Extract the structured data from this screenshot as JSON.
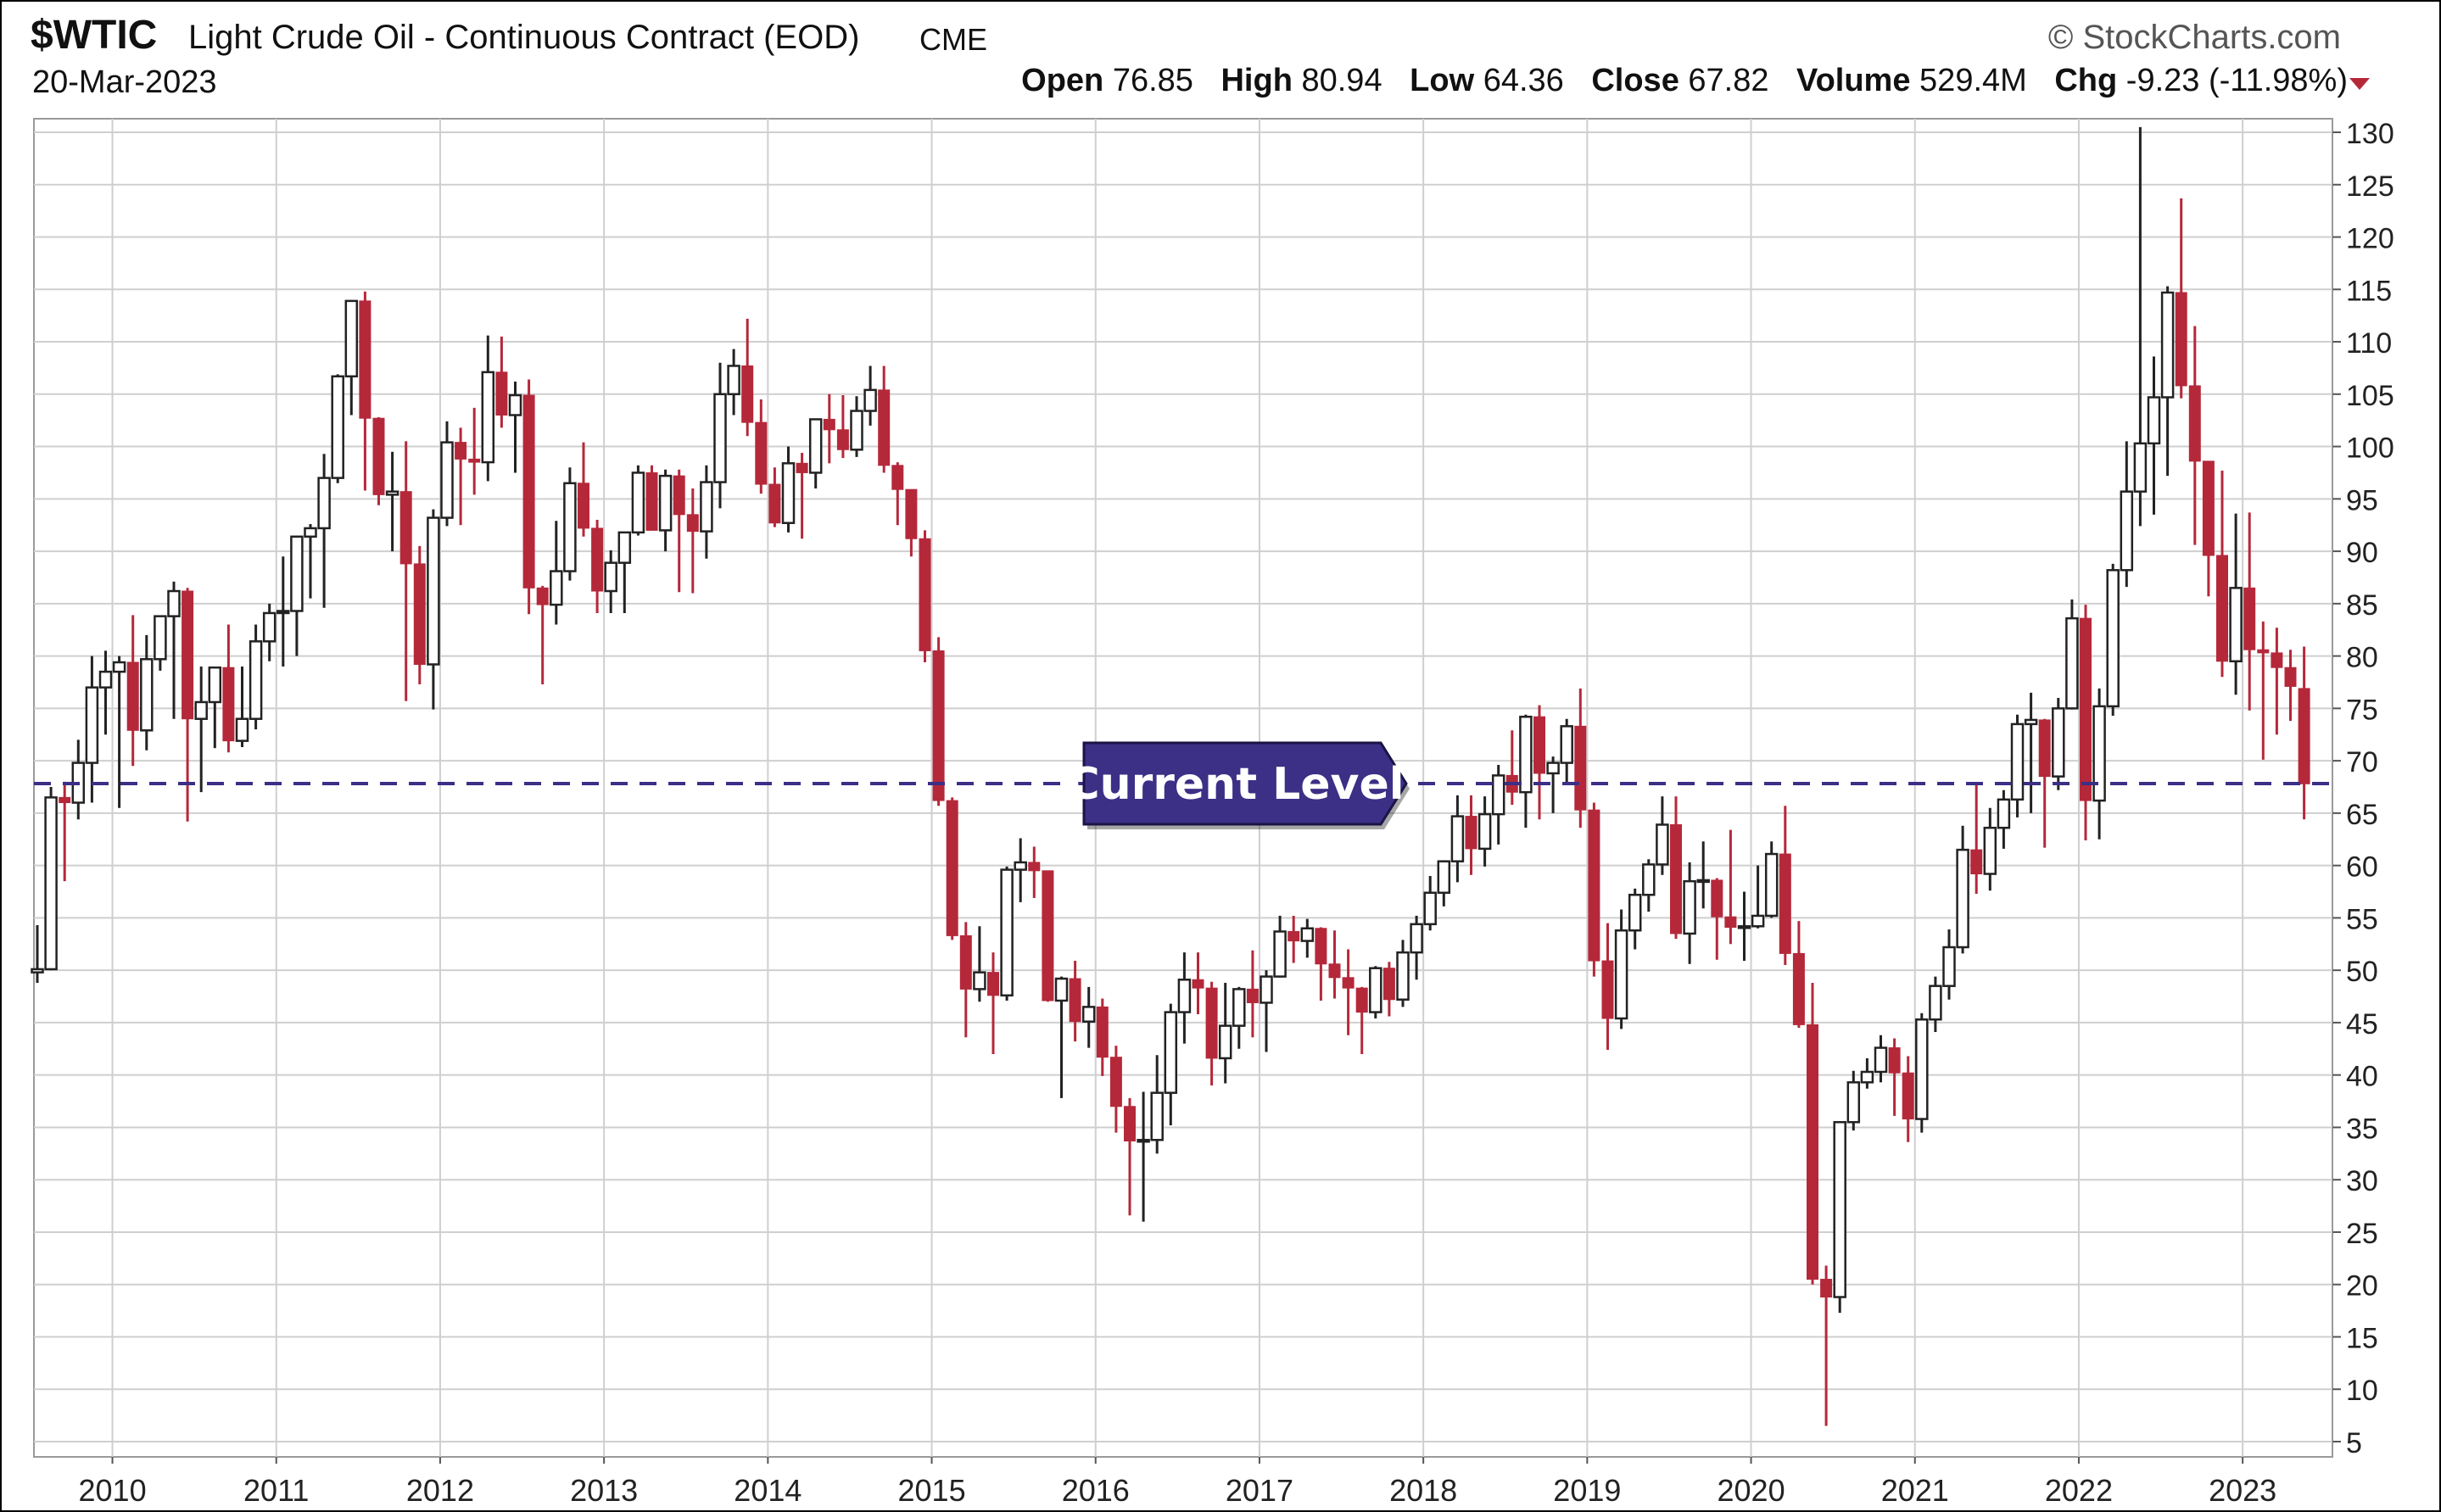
{
  "header": {
    "symbol": "$WTIC",
    "name": "Light Crude Oil - Continuous Contract (EOD)",
    "exchange": "CME",
    "date": "20-Mar-2023",
    "source_logo": "StockCharts.com",
    "open_label": "Open",
    "open": "76.85",
    "high_label": "High",
    "high": "80.94",
    "low_label": "Low",
    "low": "64.36",
    "close_label": "Close",
    "close": "67.82",
    "volume_label": "Volume",
    "volume": "529.4M",
    "chg_label": "Chg",
    "chg": "-9.23 (-11.98%)"
  },
  "colors": {
    "up": "#ffffff",
    "down": "#b5283a",
    "wick": "#222222",
    "annotation": "#3b2f86",
    "grid": "#cfcfcf"
  },
  "chart_data": {
    "type": "candlestick",
    "interval": "monthly",
    "ylim": [
      5,
      130
    ],
    "yticks": [
      5,
      10,
      15,
      20,
      25,
      30,
      35,
      40,
      45,
      50,
      55,
      60,
      65,
      70,
      75,
      80,
      85,
      90,
      95,
      100,
      105,
      110,
      115,
      120,
      125,
      130
    ],
    "xticks": [
      "2010",
      "2011",
      "2012",
      "2013",
      "2014",
      "2015",
      "2016",
      "2017",
      "2018",
      "2019",
      "2020",
      "2021",
      "2022",
      "2023"
    ],
    "start": "2009-07",
    "annotation": {
      "label": "Current Level",
      "value": 67.82
    },
    "ohlc": [
      [
        49.8,
        54.3,
        48.8,
        50.1
      ],
      [
        50.1,
        67.5,
        50,
        66.5
      ],
      [
        66.5,
        68,
        58.5,
        66
      ],
      [
        66,
        72,
        64.4,
        69.8
      ],
      [
        69.8,
        80,
        66,
        77
      ],
      [
        77,
        80.5,
        72.5,
        78.5
      ],
      [
        78.5,
        80,
        65.5,
        79.4
      ],
      [
        79.4,
        83.9,
        69.5,
        72.9
      ],
      [
        72.9,
        82,
        71,
        79.7
      ],
      [
        79.7,
        83,
        78.6,
        83.8
      ],
      [
        83.8,
        87.1,
        74,
        86.2
      ],
      [
        86.2,
        86.5,
        64.2,
        74
      ],
      [
        74,
        79,
        67,
        75.6
      ],
      [
        75.6,
        79,
        71.2,
        78.9
      ],
      [
        78.9,
        83,
        70.8,
        71.9
      ],
      [
        71.9,
        79,
        71.3,
        74
      ],
      [
        74,
        83,
        73,
        81.4
      ],
      [
        81.4,
        85,
        79.5,
        84.1
      ],
      [
        84.1,
        89.5,
        79,
        84.3
      ],
      [
        84.3,
        91.5,
        80,
        91.4
      ],
      [
        91.4,
        92.6,
        85.5,
        92.2
      ],
      [
        92.2,
        99.3,
        84.6,
        97
      ],
      [
        97,
        106.9,
        96.5,
        106.7
      ],
      [
        106.7,
        113.9,
        103,
        113.9
      ],
      [
        113.9,
        114.8,
        95.8,
        102.7
      ],
      [
        102.7,
        102.8,
        94.4,
        95.4
      ],
      [
        95.4,
        99.5,
        90,
        95.7
      ],
      [
        95.7,
        100.5,
        75.7,
        88.8
      ],
      [
        88.8,
        90.5,
        77.3,
        79.2
      ],
      [
        79.2,
        94,
        74.9,
        93.2
      ],
      [
        93.2,
        102.4,
        92.4,
        100.4
      ],
      [
        100.4,
        101.8,
        92.5,
        98.8
      ],
      [
        98.8,
        103.7,
        95.4,
        98.5
      ],
      [
        98.5,
        110.6,
        96.7,
        107.1
      ],
      [
        107.1,
        110.5,
        101.8,
        103
      ],
      [
        103,
        106.2,
        97.5,
        104.9
      ],
      [
        104.9,
        106.4,
        84,
        86.5
      ],
      [
        86.5,
        86.7,
        77.3,
        84.9
      ],
      [
        84.9,
        92.9,
        83,
        88.1
      ],
      [
        88.1,
        98,
        87.2,
        96.5
      ],
      [
        96.5,
        100.4,
        91.4,
        92.2
      ],
      [
        92.2,
        93,
        84.1,
        86.2
      ],
      [
        86.2,
        90.1,
        84.1,
        88.9
      ],
      [
        88.9,
        91.5,
        84.1,
        91.8
      ],
      [
        91.8,
        98.2,
        91.5,
        97.5
      ],
      [
        97.5,
        98.2,
        92,
        92
      ],
      [
        92,
        97.8,
        90,
        97.2
      ],
      [
        97.2,
        97.8,
        86.1,
        93.5
      ],
      [
        93.5,
        96,
        86,
        91.9
      ],
      [
        91.9,
        98.2,
        89.3,
        96.6
      ],
      [
        96.6,
        108,
        94.1,
        105
      ],
      [
        105,
        109.3,
        103,
        107.7
      ],
      [
        107.7,
        112.2,
        101,
        102.3
      ],
      [
        102.3,
        104.5,
        95.5,
        96.4
      ],
      [
        96.4,
        98,
        92.3,
        92.7
      ],
      [
        92.7,
        100,
        91.8,
        98.4
      ],
      [
        98.4,
        99.4,
        91.2,
        97.5
      ],
      [
        97.5,
        102.6,
        96,
        102.6
      ],
      [
        102.6,
        105,
        98.4,
        101.6
      ],
      [
        101.6,
        104.9,
        98.9,
        99.7
      ],
      [
        99.7,
        104.8,
        99,
        103.4
      ],
      [
        103.4,
        107.7,
        102,
        105.4
      ],
      [
        105.4,
        107.7,
        97.5,
        98.2
      ],
      [
        98.2,
        98.5,
        92.5,
        95.9
      ],
      [
        95.9,
        95.9,
        89.5,
        91.2
      ],
      [
        91.2,
        92,
        79.4,
        80.5
      ],
      [
        80.5,
        81.8,
        65.7,
        66.2
      ],
      [
        66.2,
        66.5,
        52.9,
        53.3
      ],
      [
        53.3,
        54.6,
        43.6,
        48.2
      ],
      [
        48.2,
        54.2,
        47,
        49.8
      ],
      [
        49.8,
        51.7,
        42,
        47.6
      ],
      [
        47.6,
        59.9,
        47.1,
        59.6
      ],
      [
        59.6,
        62.6,
        56.5,
        60.3
      ],
      [
        60.3,
        61.8,
        56.9,
        59.5
      ],
      [
        59.5,
        59.5,
        47,
        47.1
      ],
      [
        47.1,
        49.4,
        37.8,
        49.2
      ],
      [
        49.2,
        50.9,
        43.2,
        45.1
      ],
      [
        45.1,
        48.4,
        42.6,
        46.5
      ],
      [
        46.5,
        47.3,
        39.9,
        41.7
      ],
      [
        41.7,
        42.8,
        34.5,
        37
      ],
      [
        37,
        37.8,
        26.6,
        33.7
      ],
      [
        33.7,
        38.4,
        26,
        33.8
      ],
      [
        33.8,
        41.9,
        32.5,
        38.3
      ],
      [
        38.3,
        46.8,
        35.2,
        46
      ],
      [
        46,
        51.7,
        43,
        49.1
      ],
      [
        49.1,
        51.7,
        45.8,
        48.3
      ],
      [
        48.3,
        48.9,
        39,
        41.6
      ],
      [
        41.6,
        48.8,
        39.2,
        44.7
      ],
      [
        44.7,
        48.4,
        42.5,
        48.2
      ],
      [
        48.2,
        51.9,
        43.6,
        46.9
      ],
      [
        46.9,
        50,
        42.2,
        49.4
      ],
      [
        49.4,
        55.2,
        49.3,
        53.7
      ],
      [
        53.7,
        55.2,
        50.7,
        52.8
      ],
      [
        52.8,
        54.9,
        51.2,
        54
      ],
      [
        54,
        54.1,
        47.1,
        50.6
      ],
      [
        50.6,
        53.8,
        47.3,
        49.3
      ],
      [
        49.3,
        52,
        43.8,
        48.3
      ],
      [
        48.3,
        48.4,
        42,
        46
      ],
      [
        46,
        50.4,
        45.4,
        50.2
      ],
      [
        50.2,
        50.8,
        45.6,
        47.2
      ],
      [
        47.2,
        52.9,
        46.5,
        51.7
      ],
      [
        51.7,
        55.2,
        49.1,
        54.4
      ],
      [
        54.4,
        59,
        53.8,
        57.4
      ],
      [
        57.4,
        60.5,
        56.1,
        60.4
      ],
      [
        60.4,
        66.7,
        58.4,
        64.7
      ],
      [
        64.7,
        66.7,
        59.1,
        61.6
      ],
      [
        61.6,
        66.6,
        59.9,
        64.9
      ],
      [
        64.9,
        69.6,
        62,
        68.6
      ],
      [
        68.6,
        72.9,
        65.8,
        67
      ],
      [
        67,
        74.4,
        63.6,
        74.2
      ],
      [
        74.2,
        75.3,
        64.4,
        68.8
      ],
      [
        68.8,
        70.4,
        65,
        69.8
      ],
      [
        69.8,
        74,
        67.7,
        73.3
      ],
      [
        73.3,
        76.9,
        63.6,
        65.3
      ],
      [
        65.3,
        66,
        49.4,
        50.9
      ],
      [
        50.9,
        54.5,
        42.4,
        45.4
      ],
      [
        45.4,
        55.8,
        44.4,
        53.8
      ],
      [
        53.8,
        57.8,
        52,
        57.2
      ],
      [
        57.2,
        60.6,
        55.6,
        60.1
      ],
      [
        60.1,
        66.6,
        59.1,
        63.9
      ],
      [
        63.9,
        66.6,
        53,
        53.5
      ],
      [
        53.5,
        60.3,
        50.6,
        58.5
      ],
      [
        58.5,
        62.3,
        55.9,
        58.6
      ],
      [
        58.6,
        58.8,
        51,
        55.1
      ],
      [
        55.1,
        63.4,
        52.5,
        54.1
      ],
      [
        54.1,
        57.5,
        50.9,
        54.2
      ],
      [
        54.2,
        60,
        54,
        55.2
      ],
      [
        55.2,
        62.3,
        55,
        61.1
      ],
      [
        61.1,
        65.7,
        50.5,
        51.6
      ],
      [
        51.6,
        54.7,
        44.5,
        44.8
      ],
      [
        44.8,
        48.8,
        20,
        20.5
      ],
      [
        20.5,
        21.8,
        6.5,
        18.8
      ],
      [
        18.8,
        35.5,
        17.3,
        35.5
      ],
      [
        35.5,
        40.4,
        34.7,
        39.3
      ],
      [
        39.3,
        41.6,
        38.7,
        40.3
      ],
      [
        40.3,
        43.8,
        39.3,
        42.6
      ],
      [
        42.6,
        43.5,
        36.1,
        40.2
      ],
      [
        40.2,
        41.8,
        33.6,
        35.8
      ],
      [
        35.8,
        45.9,
        34.5,
        45.3
      ],
      [
        45.3,
        49.4,
        44.1,
        48.5
      ],
      [
        48.5,
        53.9,
        47.2,
        52.2
      ],
      [
        52.2,
        63.8,
        51.6,
        61.5
      ],
      [
        61.5,
        67.9,
        57.3,
        59.2
      ],
      [
        59.2,
        65.5,
        57.6,
        63.6
      ],
      [
        63.6,
        67.2,
        61.6,
        66.3
      ],
      [
        66.3,
        74.4,
        64.6,
        73.5
      ],
      [
        73.5,
        76.5,
        65,
        73.9
      ],
      [
        73.9,
        74,
        61.7,
        68.5
      ],
      [
        68.5,
        76,
        67.2,
        75
      ],
      [
        75,
        85.4,
        74.9,
        83.6
      ],
      [
        83.6,
        84.9,
        62.4,
        66.2
      ],
      [
        66.2,
        76.9,
        62.5,
        75.2
      ],
      [
        75.2,
        88.8,
        74.3,
        88.2
      ],
      [
        88.2,
        100.5,
        86.6,
        95.7
      ],
      [
        95.7,
        130.5,
        92.4,
        100.3
      ],
      [
        100.3,
        108.6,
        93.5,
        104.7
      ],
      [
        104.7,
        115.3,
        97.2,
        114.7
      ],
      [
        114.7,
        123.7,
        104.6,
        105.8
      ],
      [
        105.8,
        111.5,
        90.6,
        98.6
      ],
      [
        98.6,
        97.9,
        85.7,
        89.6
      ],
      [
        89.6,
        97.7,
        78,
        79.5
      ],
      [
        79.5,
        93.6,
        76.3,
        86.5
      ],
      [
        86.5,
        93.7,
        74.8,
        80.6
      ],
      [
        80.6,
        83.3,
        70.1,
        80.3
      ],
      [
        80.3,
        82.7,
        72.5,
        78.9
      ],
      [
        78.9,
        80.6,
        73.8,
        77.1
      ],
      [
        76.9,
        80.9,
        64.4,
        67.8
      ]
    ]
  }
}
